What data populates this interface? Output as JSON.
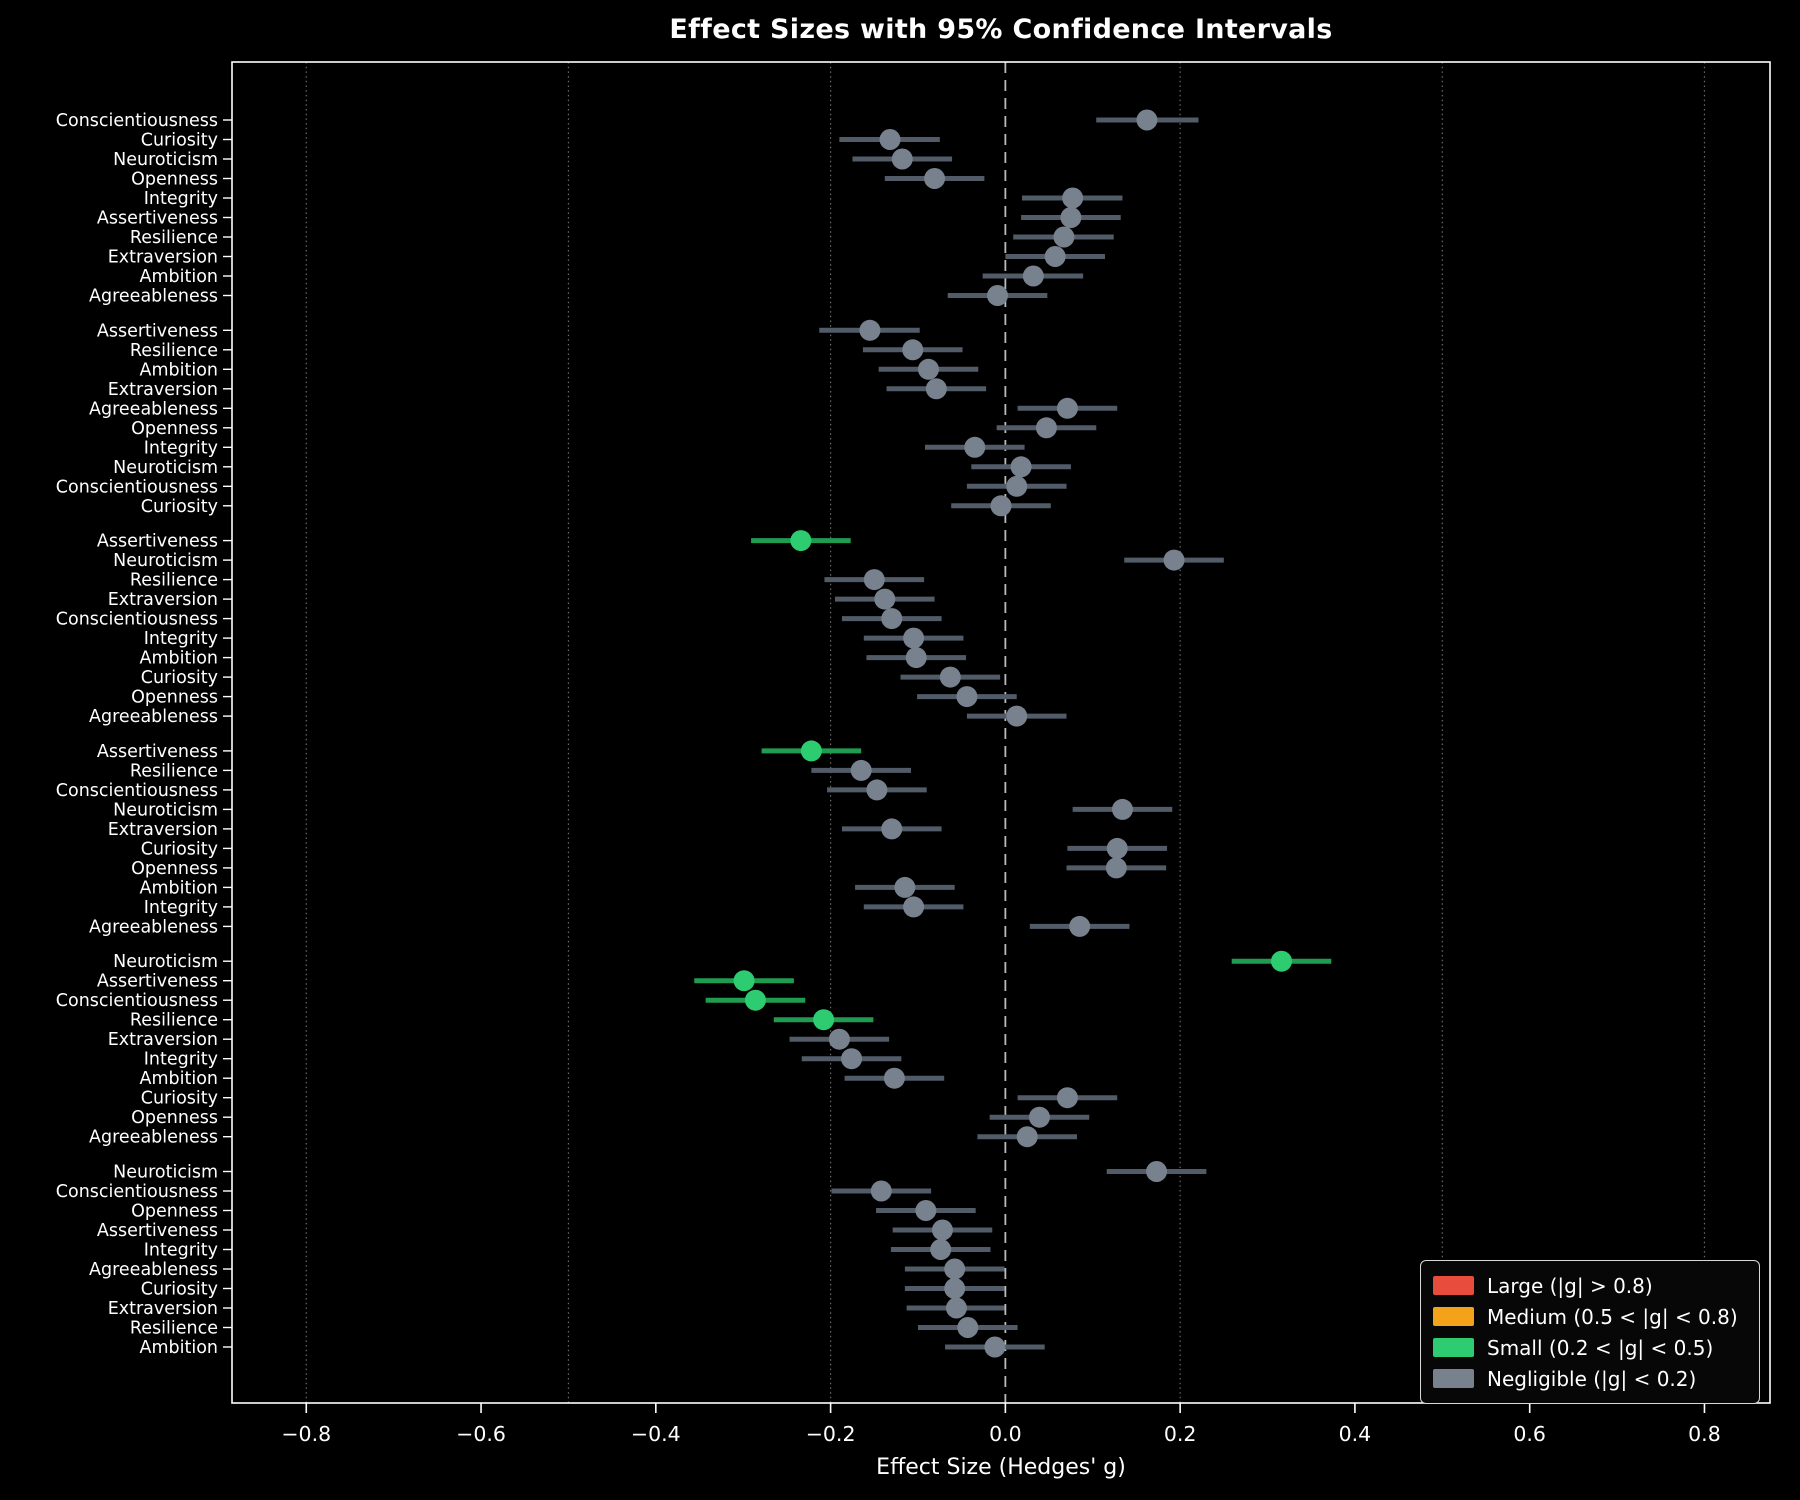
{
  "title": "Effect Sizes with 95% Confidence Intervals",
  "xlabel": "Effect Size (Hedges' g)",
  "colors": {
    "background": "#000000",
    "text": "#ffffff",
    "spine": "#ffffff",
    "zero_line": "#bbbbbb",
    "reference_line": "#6a6a6a",
    "large": "#e74c3c",
    "large_line": "#a93226",
    "medium": "#f5a21b",
    "medium_line": "#b97708",
    "small": "#2ecc71",
    "small_line": "#1f9c50",
    "negligible": "#78828f",
    "negligible_line": "#525b68"
  },
  "legend": {
    "items": [
      {
        "key": "large",
        "label": "Large (|g| > 0.8)"
      },
      {
        "key": "medium",
        "label": "Medium (0.5 < |g| < 0.8)"
      },
      {
        "key": "small",
        "label": "Small (0.2 < |g| < 0.5)"
      },
      {
        "key": "negligible",
        "label": "Negligible (|g| < 0.2)"
      }
    ]
  },
  "chart_data": {
    "type": "scatter",
    "subtype": "forest-plot",
    "xlim": [
      -0.885,
      0.875
    ],
    "x_tick_values": [
      -0.8,
      -0.6,
      -0.4,
      -0.2,
      0.0,
      0.2,
      0.4,
      0.6,
      0.8
    ],
    "x_tick_labels": [
      "−0.8",
      "−0.6",
      "−0.4",
      "−0.2",
      "0.0",
      "0.2",
      "0.4",
      "0.6",
      "0.8"
    ],
    "reference_lines_dotted": [
      -0.8,
      -0.5,
      -0.2,
      0.2,
      0.5,
      0.8
    ],
    "zero_line": 0.0,
    "thresholds": {
      "large": 0.8,
      "medium": 0.5,
      "small": 0.2
    },
    "groups": [
      {
        "rows": [
          {
            "label": "Conscientiousness",
            "g": 0.162,
            "lo": 0.104,
            "hi": 0.221
          },
          {
            "label": "Curiosity",
            "g": -0.132,
            "lo": -0.19,
            "hi": -0.075
          },
          {
            "label": "Neuroticism",
            "g": -0.118,
            "lo": -0.175,
            "hi": -0.061
          },
          {
            "label": "Openness",
            "g": -0.081,
            "lo": -0.138,
            "hi": -0.024
          },
          {
            "label": "Integrity",
            "g": 0.077,
            "lo": 0.019,
            "hi": 0.134
          },
          {
            "label": "Assertiveness",
            "g": 0.075,
            "lo": 0.018,
            "hi": 0.132
          },
          {
            "label": "Resilience",
            "g": 0.067,
            "lo": 0.009,
            "hi": 0.124
          },
          {
            "label": "Extraversion",
            "g": 0.057,
            "lo": 0.0,
            "hi": 0.114
          },
          {
            "label": "Ambition",
            "g": 0.032,
            "lo": -0.026,
            "hi": 0.089
          },
          {
            "label": "Agreeableness",
            "g": -0.009,
            "lo": -0.066,
            "hi": 0.048
          }
        ]
      },
      {
        "rows": [
          {
            "label": "Assertiveness",
            "g": -0.155,
            "lo": -0.213,
            "hi": -0.098
          },
          {
            "label": "Resilience",
            "g": -0.106,
            "lo": -0.163,
            "hi": -0.049
          },
          {
            "label": "Ambition",
            "g": -0.088,
            "lo": -0.145,
            "hi": -0.031
          },
          {
            "label": "Extraversion",
            "g": -0.079,
            "lo": -0.136,
            "hi": -0.022
          },
          {
            "label": "Agreeableness",
            "g": 0.071,
            "lo": 0.014,
            "hi": 0.128
          },
          {
            "label": "Openness",
            "g": 0.047,
            "lo": -0.01,
            "hi": 0.104
          },
          {
            "label": "Integrity",
            "g": -0.035,
            "lo": -0.092,
            "hi": 0.022
          },
          {
            "label": "Neuroticism",
            "g": 0.018,
            "lo": -0.039,
            "hi": 0.075
          },
          {
            "label": "Conscientiousness",
            "g": 0.013,
            "lo": -0.044,
            "hi": 0.07
          },
          {
            "label": "Curiosity",
            "g": -0.005,
            "lo": -0.062,
            "hi": 0.052
          }
        ]
      },
      {
        "rows": [
          {
            "label": "Assertiveness",
            "g": -0.234,
            "lo": -0.291,
            "hi": -0.177
          },
          {
            "label": "Neuroticism",
            "g": 0.193,
            "lo": 0.136,
            "hi": 0.25
          },
          {
            "label": "Resilience",
            "g": -0.15,
            "lo": -0.207,
            "hi": -0.093
          },
          {
            "label": "Extraversion",
            "g": -0.138,
            "lo": -0.195,
            "hi": -0.081
          },
          {
            "label": "Conscientiousness",
            "g": -0.13,
            "lo": -0.187,
            "hi": -0.073
          },
          {
            "label": "Integrity",
            "g": -0.105,
            "lo": -0.162,
            "hi": -0.048
          },
          {
            "label": "Ambition",
            "g": -0.102,
            "lo": -0.159,
            "hi": -0.045
          },
          {
            "label": "Curiosity",
            "g": -0.063,
            "lo": -0.12,
            "hi": -0.006
          },
          {
            "label": "Openness",
            "g": -0.044,
            "lo": -0.101,
            "hi": 0.013
          },
          {
            "label": "Agreeableness",
            "g": 0.013,
            "lo": -0.044,
            "hi": 0.07
          }
        ]
      },
      {
        "rows": [
          {
            "label": "Assertiveness",
            "g": -0.222,
            "lo": -0.279,
            "hi": -0.165
          },
          {
            "label": "Resilience",
            "g": -0.165,
            "lo": -0.222,
            "hi": -0.108
          },
          {
            "label": "Conscientiousness",
            "g": -0.147,
            "lo": -0.204,
            "hi": -0.09
          },
          {
            "label": "Neuroticism",
            "g": 0.134,
            "lo": 0.077,
            "hi": 0.191
          },
          {
            "label": "Extraversion",
            "g": -0.13,
            "lo": -0.187,
            "hi": -0.073
          },
          {
            "label": "Curiosity",
            "g": 0.128,
            "lo": 0.071,
            "hi": 0.185
          },
          {
            "label": "Openness",
            "g": 0.127,
            "lo": 0.07,
            "hi": 0.184
          },
          {
            "label": "Ambition",
            "g": -0.115,
            "lo": -0.172,
            "hi": -0.058
          },
          {
            "label": "Integrity",
            "g": -0.105,
            "lo": -0.162,
            "hi": -0.048
          },
          {
            "label": "Agreeableness",
            "g": 0.085,
            "lo": 0.028,
            "hi": 0.142
          }
        ]
      },
      {
        "rows": [
          {
            "label": "Neuroticism",
            "g": 0.316,
            "lo": 0.259,
            "hi": 0.373
          },
          {
            "label": "Assertiveness",
            "g": -0.299,
            "lo": -0.356,
            "hi": -0.242
          },
          {
            "label": "Conscientiousness",
            "g": -0.286,
            "lo": -0.343,
            "hi": -0.229
          },
          {
            "label": "Resilience",
            "g": -0.208,
            "lo": -0.265,
            "hi": -0.151
          },
          {
            "label": "Extraversion",
            "g": -0.19,
            "lo": -0.247,
            "hi": -0.133
          },
          {
            "label": "Integrity",
            "g": -0.176,
            "lo": -0.233,
            "hi": -0.119
          },
          {
            "label": "Ambition",
            "g": -0.127,
            "lo": -0.184,
            "hi": -0.07
          },
          {
            "label": "Curiosity",
            "g": 0.071,
            "lo": 0.014,
            "hi": 0.128
          },
          {
            "label": "Openness",
            "g": 0.039,
            "lo": -0.018,
            "hi": 0.096
          },
          {
            "label": "Agreeableness",
            "g": 0.025,
            "lo": -0.032,
            "hi": 0.082
          }
        ]
      },
      {
        "rows": [
          {
            "label": "Neuroticism",
            "g": 0.173,
            "lo": 0.116,
            "hi": 0.23
          },
          {
            "label": "Conscientiousness",
            "g": -0.142,
            "lo": -0.199,
            "hi": -0.085
          },
          {
            "label": "Openness",
            "g": -0.091,
            "lo": -0.148,
            "hi": -0.034
          },
          {
            "label": "Assertiveness",
            "g": -0.072,
            "lo": -0.129,
            "hi": -0.015
          },
          {
            "label": "Integrity",
            "g": -0.074,
            "lo": -0.131,
            "hi": -0.017
          },
          {
            "label": "Agreeableness",
            "g": -0.058,
            "lo": -0.115,
            "hi": -0.001
          },
          {
            "label": "Curiosity",
            "g": -0.058,
            "lo": -0.115,
            "hi": -0.001
          },
          {
            "label": "Extraversion",
            "g": -0.056,
            "lo": -0.113,
            "hi": -0.001
          },
          {
            "label": "Resilience",
            "g": -0.043,
            "lo": -0.1,
            "hi": 0.014
          },
          {
            "label": "Ambition",
            "g": -0.012,
            "lo": -0.069,
            "hi": 0.045
          }
        ]
      }
    ]
  }
}
